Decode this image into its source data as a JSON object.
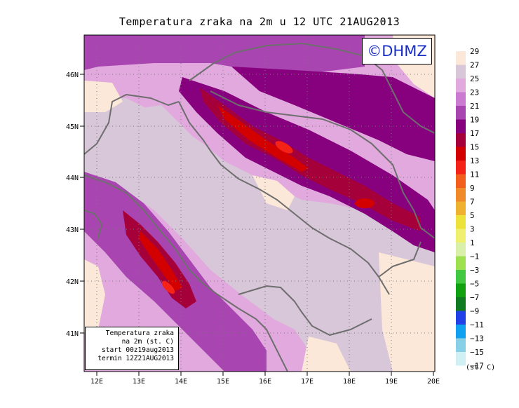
{
  "title": "Temperatura zraka na 2m u 12 UTC 21AUG2013",
  "copyright": "©DHMZ",
  "info_box": [
    "Temperatura zraka",
    "na 2m (st. C)",
    "start 00z19aug2013",
    "termin 12Z21AUG2013"
  ],
  "legend": {
    "unit": "(st. C)",
    "labels": [
      "29",
      "27",
      "25",
      "23",
      "21",
      "19",
      "17",
      "15",
      "13",
      "11",
      "9",
      "7",
      "5",
      "3",
      "1",
      "−1",
      "−3",
      "−5",
      "−7",
      "−9",
      "−11",
      "−13",
      "−15",
      "−17"
    ],
    "colors": [
      "#fce8d8",
      "#d8c6d9",
      "#e1a9de",
      "#cb7ad2",
      "#a845b0",
      "#87007e",
      "#a6003a",
      "#d30000",
      "#f52218",
      "#f45e1c",
      "#f08a28",
      "#f0b030",
      "#ece23a",
      "#f0f070",
      "#d8f0a8",
      "#9ee050",
      "#40c840",
      "#10a010",
      "#107a20",
      "#2040e8",
      "#10a0f0",
      "#88d0e8",
      "#d0f0f4",
      "#ffffff"
    ]
  },
  "axes": {
    "lon_ticks": [
      "12E",
      "13E",
      "14E",
      "15E",
      "16E",
      "17E",
      "18E",
      "19E",
      "20E"
    ],
    "lat_ticks": [
      "46N",
      "45N",
      "44N",
      "43N",
      "42N",
      "41N"
    ]
  }
}
